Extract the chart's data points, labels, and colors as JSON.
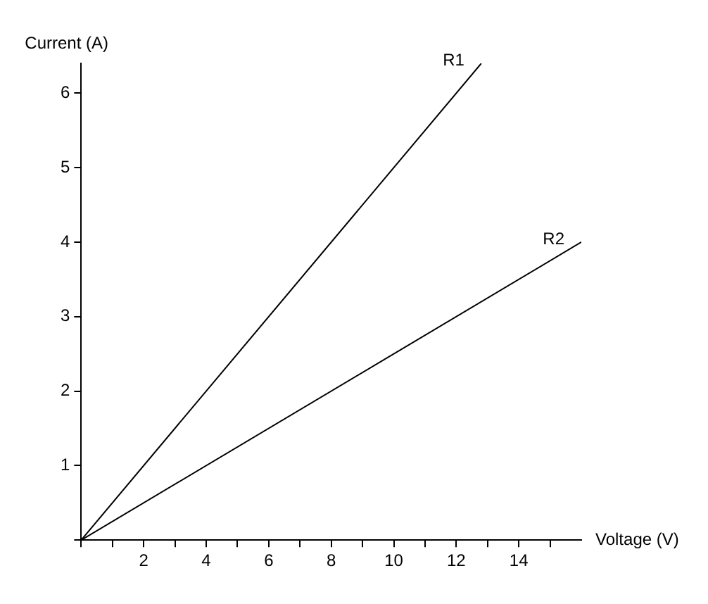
{
  "chart_data": {
    "type": "line",
    "xlabel": "Voltage (V)",
    "ylabel": "Current (A)",
    "series": [
      {
        "name": "R1",
        "color": "#000000",
        "x": [
          0,
          12.8
        ],
        "values": [
          0,
          6.4
        ]
      },
      {
        "name": "R2",
        "color": "#000000",
        "x": [
          0,
          16
        ],
        "values": [
          0,
          4
        ]
      }
    ],
    "xlim": [
      0,
      16
    ],
    "ylim": [
      0,
      6.4
    ],
    "xticks": [
      {
        "value": 0,
        "label": null
      },
      {
        "value": 1,
        "label": null
      },
      2,
      {
        "value": 3,
        "label": null
      },
      4,
      {
        "value": 5,
        "label": null
      },
      6,
      {
        "value": 7,
        "label": null
      },
      8,
      {
        "value": 9,
        "label": null
      },
      10,
      {
        "value": 11,
        "label": null
      },
      12,
      {
        "value": 13,
        "label": null
      },
      14,
      {
        "value": 15,
        "label": null
      }
    ],
    "yticks": [
      {
        "value": 0,
        "label": null
      },
      1,
      2,
      3,
      4,
      5,
      6
    ],
    "grid": false,
    "legend": false,
    "marker": "none",
    "line_style": "solid"
  }
}
